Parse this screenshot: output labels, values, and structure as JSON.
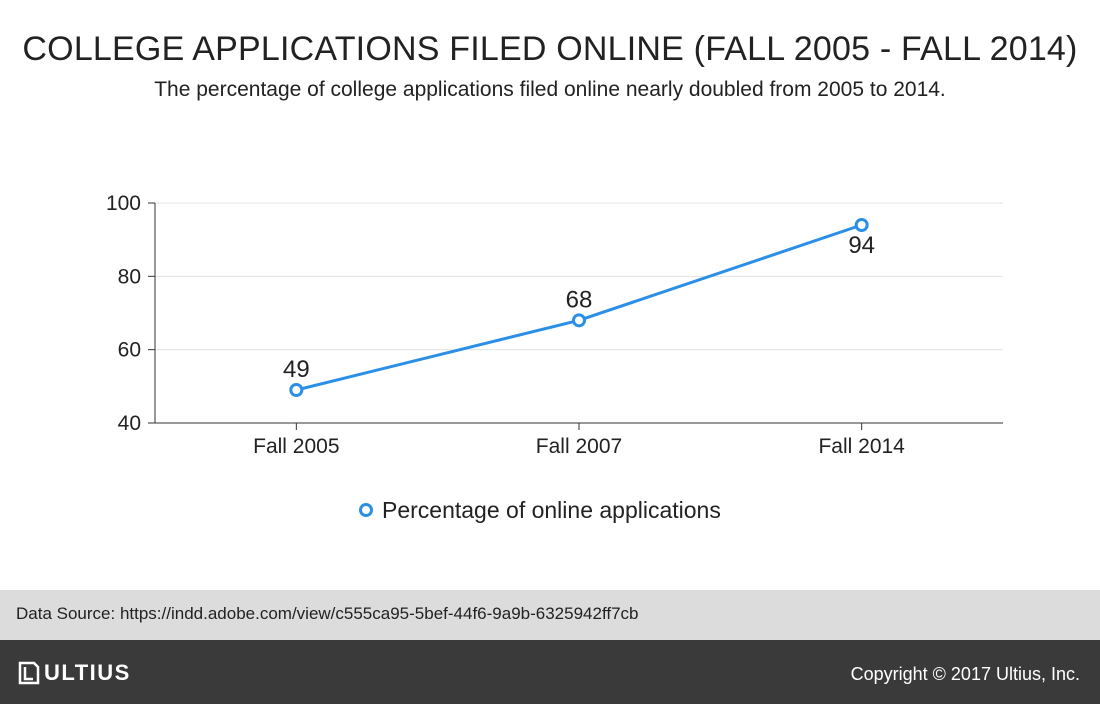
{
  "header": {
    "title": "COLLEGE APPLICATIONS FILED ONLINE (FALL 2005 - FALL 2014)",
    "subtitle": "The percentage of college applications filed online nearly doubled from 2005 to 2014."
  },
  "chart_data": {
    "type": "line",
    "categories": [
      "Fall 2005",
      "Fall 2007",
      "Fall 2014"
    ],
    "series": [
      {
        "name": "Percentage of online applications",
        "values": [
          49,
          68,
          94
        ],
        "color": "#2a8fe6"
      }
    ],
    "ylim": [
      40,
      100
    ],
    "yticks": [
      40,
      60,
      80,
      100
    ],
    "grid": true,
    "legend_position": "bottom-center",
    "data_labels": true
  },
  "source": {
    "text": "Data Source: https://indd.adobe.com/view/c555ca95-5bef-44f6-9a9b-6325942ff7cb"
  },
  "footer": {
    "logo_text": "ULTIUS",
    "copyright": "Copyright © 2017 Ultius, Inc."
  },
  "colors": {
    "footer_bg": "#3a3a3a",
    "source_bg": "#dcdcdc",
    "grid": "#e3e3e3",
    "axis": "#333333"
  }
}
